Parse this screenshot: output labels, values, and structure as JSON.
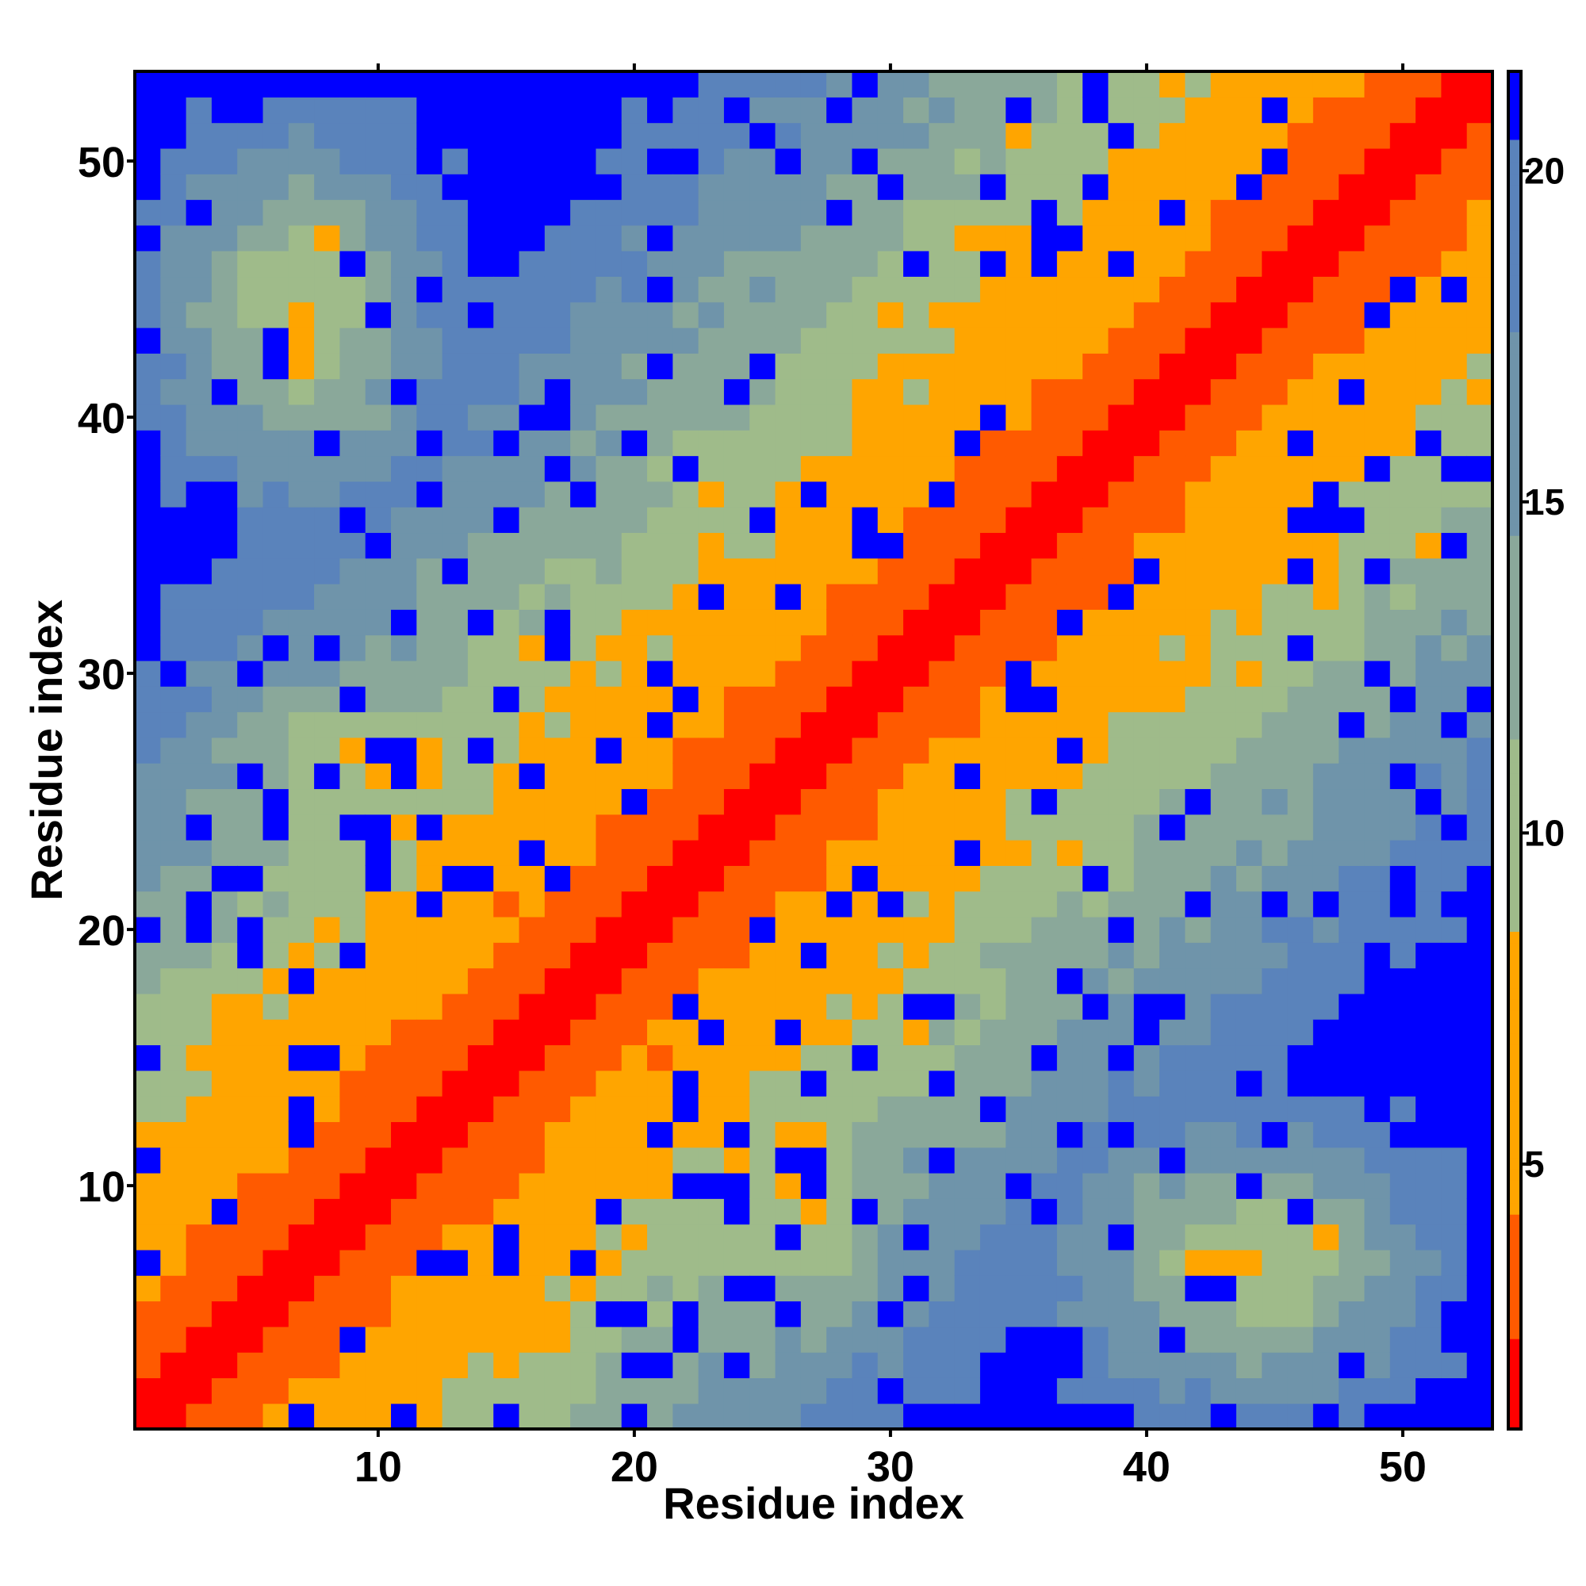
{
  "chart_data": {
    "type": "heatmap",
    "title": "",
    "xlabel": "Residue index",
    "ylabel": "Residue index",
    "n": 53,
    "xlim": [
      0.5,
      53.5
    ],
    "ylim": [
      0.5,
      53.5
    ],
    "x_ticks": [
      10,
      20,
      30,
      40,
      50
    ],
    "y_ticks": [
      10,
      20,
      30,
      40,
      50
    ],
    "x_tick_labels": [
      "10",
      "20",
      "30",
      "40",
      "50"
    ],
    "y_tick_labels": [
      "10",
      "20",
      "30",
      "40",
      "50"
    ],
    "colorbar": {
      "min": 1,
      "max": 21.5,
      "ticks": [
        5,
        10,
        15,
        20
      ],
      "tick_labels": [
        "5",
        "10",
        "15",
        "20"
      ],
      "placement": "right"
    },
    "color_scale": [
      {
        "max": 2.4,
        "color": "#ff0000"
      },
      {
        "max": 4.2,
        "color": "#ff5a00"
      },
      {
        "max": 8.5,
        "color": "#ffa500"
      },
      {
        "max": 11.5,
        "color": "#9fbb8a"
      },
      {
        "max": 14.5,
        "color": "#8aa89a"
      },
      {
        "max": 17.5,
        "color": "#6f94aa"
      },
      {
        "max": 20.5,
        "color": "#5a83bb"
      },
      {
        "max": 99,
        "color": "#0000ff"
      }
    ],
    "cutoff_out": 21.5,
    "value_model": "distance between residues i and j, d = 1.3 + 0.62 * |i - j| (diagonal band) with off-diagonal contact patches; cells above the cutoff shown as blue",
    "contact_patches": [
      {
        "i_range": [
          1,
          13
        ],
        "j_range": [
          36,
          52
        ],
        "min_distance": 7.0
      },
      {
        "i_range": [
          13,
          22
        ],
        "j_range": [
          22,
          38
        ],
        "min_distance": 6.5
      },
      {
        "i_range": [
          22,
          31
        ],
        "j_range": [
          1,
          20
        ],
        "min_distance": 5.8
      },
      {
        "i_range": [
          36,
          52
        ],
        "j_range": [
          1,
          13
        ],
        "min_distance": 7.0
      },
      {
        "i_range": [
          22,
          38
        ],
        "j_range": [
          13,
          22
        ],
        "min_distance": 6.5
      },
      {
        "i_range": [
          1,
          20
        ],
        "j_range": [
          22,
          31
        ],
        "min_distance": 5.8
      }
    ]
  }
}
